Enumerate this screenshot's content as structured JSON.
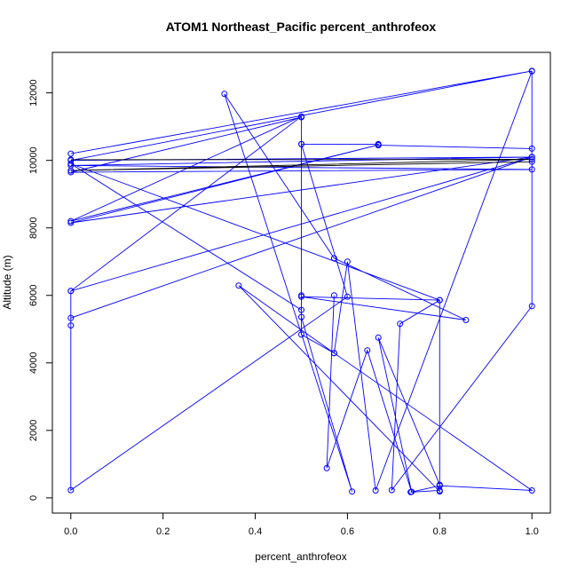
{
  "chart_data": {
    "type": "line",
    "title": "ATOM1 Northeast_Pacific percent_anthrofeox",
    "xlabel": "percent_anthrofeox",
    "ylabel": "Altitude (m)",
    "xlim": [
      -0.04,
      1.04
    ],
    "ylim": [
      -450,
      13200
    ],
    "xticks": [
      0,
      0.2,
      0.4,
      0.6,
      0.8,
      1
    ],
    "xtick_labels": [
      "0.0",
      "0.2",
      "0.4",
      "0.6",
      "0.8",
      "1.0"
    ],
    "yticks": [
      0,
      2000,
      4000,
      6000,
      8000,
      10000,
      12000
    ],
    "ytick_labels": [
      "0",
      "2000",
      "4000",
      "6000",
      "8000",
      "10000",
      "12000"
    ],
    "grid": false,
    "series": [
      {
        "color": "#0000ff",
        "x": [
          0.0,
          1.0,
          0.0,
          1.0,
          0.0,
          1.0,
          0.0,
          0.5,
          0.5,
          0.667,
          0.667,
          1.0,
          1.0,
          0.0,
          0.667,
          0.0,
          0.5,
          0.0,
          1.0,
          0.0,
          0.0,
          0.0,
          0.0,
          0.6,
          0.5,
          0.5,
          0.5,
          0.61,
          0.333,
          0.571,
          0.857,
          0.5,
          0.8,
          0.0,
          0.5,
          0.5,
          0.571,
          0.6,
          0.661,
          1.0,
          1.0,
          0.696,
          0.714,
          0.8,
          0.8,
          0.737,
          0.8,
          1.0,
          0.571,
          0.364,
          0.8,
          0.8,
          0.667,
          0.739,
          0.643,
          0.555,
          0.571
        ],
        "y": [
          10200,
          12650,
          10000,
          10100,
          9850,
          9730,
          9650,
          11280,
          10480,
          10480,
          10450,
          10350,
          10100,
          8150,
          10460,
          8200,
          11300,
          6130,
          10100,
          5330,
          6130,
          5110,
          230,
          5960,
          10480,
          6000,
          5360,
          190,
          11970,
          7100,
          5270,
          5960,
          5860,
          9900,
          5570,
          4840,
          4290,
          7000,
          220,
          12640,
          5680,
          230,
          5160,
          5860,
          220,
          170,
          360,
          220,
          4290,
          6290,
          190,
          390,
          4750,
          180,
          4370,
          880,
          6000
        ]
      },
      {
        "color": "#000000",
        "x": [
          0.0,
          1.0,
          0.0,
          1.0
        ],
        "y": [
          10020,
          10030,
          9700,
          9960
        ]
      }
    ]
  }
}
